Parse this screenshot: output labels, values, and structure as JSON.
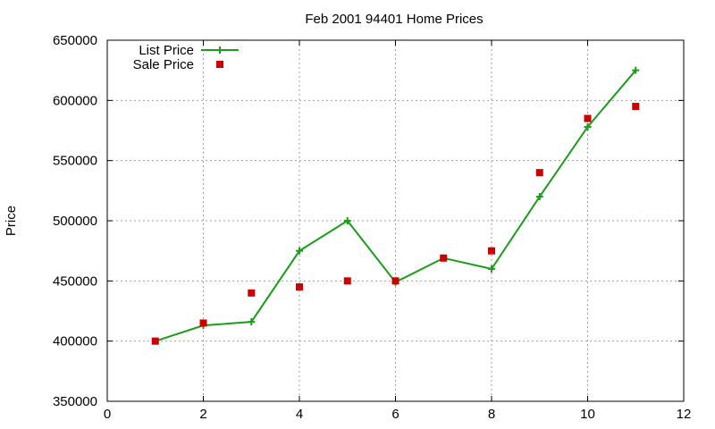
{
  "chart_data": {
    "type": "line",
    "title": "Feb 2001 94401 Home Prices",
    "xlabel": "",
    "ylabel": "Price",
    "xlim": [
      0,
      12
    ],
    "ylim": [
      350000,
      650000
    ],
    "x_ticks": [
      0,
      2,
      4,
      6,
      8,
      10,
      12
    ],
    "y_ticks": [
      350000,
      400000,
      450000,
      500000,
      550000,
      600000,
      650000
    ],
    "grid": true,
    "legend_position": "top-left",
    "series": [
      {
        "name": "List Price",
        "style": "line+marker",
        "marker": "plus",
        "color": "#1a9e1a",
        "x": [
          1,
          2,
          3,
          4,
          5,
          6,
          7,
          8,
          9,
          10,
          11
        ],
        "values": [
          400000,
          413000,
          416000,
          475000,
          500000,
          449000,
          469000,
          460000,
          520000,
          578000,
          625000
        ]
      },
      {
        "name": "Sale Price",
        "style": "marker",
        "marker": "square",
        "color": "#cc0000",
        "x": [
          1,
          2,
          3,
          4,
          5,
          6,
          7,
          8,
          9,
          10,
          11
        ],
        "values": [
          400000,
          415000,
          440000,
          445000,
          450000,
          450000,
          469000,
          475000,
          540000,
          585000,
          595000
        ]
      }
    ]
  }
}
